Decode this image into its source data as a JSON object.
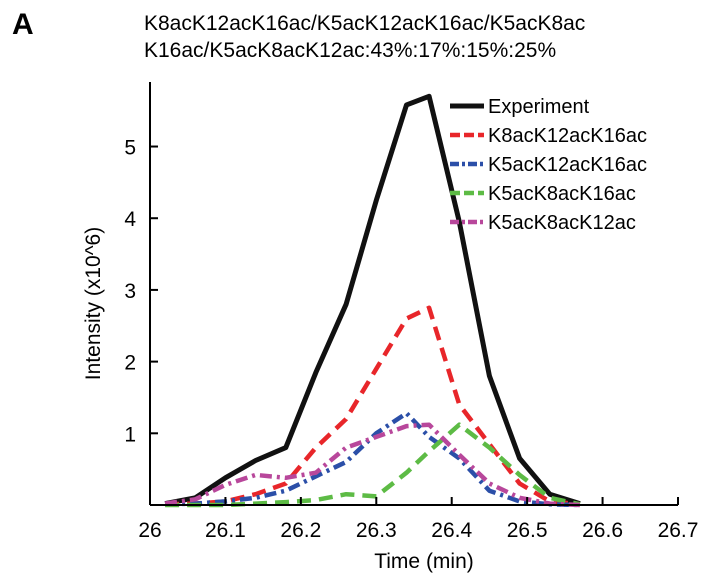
{
  "panel_label": "A",
  "chart_data": {
    "type": "line",
    "title_lines": [
      "K8acK12acK16ac/K5acK12acK16ac/K5acK8ac",
      "K16ac/K5acK8acK12ac:43%:17%:15%:25%"
    ],
    "xlabel": "Time (min)",
    "ylabel": "Intensity (x10^6)",
    "xlim": [
      26,
      26.7
    ],
    "ylim": [
      0,
      5.9
    ],
    "xticks": [
      26,
      26.1,
      26.2,
      26.3,
      26.4,
      26.5,
      26.6,
      26.7
    ],
    "xtick_labels": [
      "26",
      "26.1",
      "26.2",
      "26.3",
      "26.4",
      "26.5",
      "26.6",
      "26.7"
    ],
    "yticks": [
      1,
      2,
      3,
      4,
      5
    ],
    "ytick_labels": [
      "1",
      "2",
      "3",
      "4",
      "5"
    ],
    "grid": false,
    "legend_position": "top-right",
    "series": [
      {
        "name": "Experiment",
        "color": "#111111",
        "dash": "solid",
        "x": [
          26.02,
          26.06,
          26.1,
          26.14,
          26.18,
          26.22,
          26.26,
          26.3,
          26.34,
          26.37,
          26.41,
          26.45,
          26.49,
          26.53,
          26.57
        ],
        "y": [
          0.02,
          0.1,
          0.38,
          0.62,
          0.8,
          1.85,
          2.8,
          4.25,
          5.58,
          5.7,
          3.95,
          1.8,
          0.65,
          0.15,
          0.02
        ]
      },
      {
        "name": "K8acK12acK16ac",
        "color": "#e8262a",
        "dash": "dash",
        "x": [
          26.02,
          26.06,
          26.1,
          26.14,
          26.18,
          26.22,
          26.26,
          26.3,
          26.34,
          26.37,
          26.41,
          26.45,
          26.49,
          26.53,
          26.57
        ],
        "y": [
          0.01,
          0.02,
          0.05,
          0.15,
          0.3,
          0.8,
          1.2,
          1.9,
          2.6,
          2.75,
          1.4,
          0.85,
          0.3,
          0.05,
          0.01
        ]
      },
      {
        "name": "K5acK12acK16ac",
        "color": "#2b4fa8",
        "dash": "dashdot",
        "x": [
          26.02,
          26.06,
          26.1,
          26.14,
          26.18,
          26.22,
          26.26,
          26.3,
          26.34,
          26.37,
          26.41,
          26.45,
          26.49,
          26.53,
          26.57
        ],
        "y": [
          0.01,
          0.02,
          0.05,
          0.1,
          0.2,
          0.4,
          0.6,
          1.0,
          1.28,
          0.95,
          0.65,
          0.2,
          0.05,
          0.01,
          0.0
        ]
      },
      {
        "name": "K5acK8acK16ac",
        "color": "#5dbb45",
        "dash": "dash",
        "x": [
          26.02,
          26.06,
          26.1,
          26.14,
          26.18,
          26.22,
          26.26,
          26.3,
          26.34,
          26.37,
          26.41,
          26.45,
          26.49,
          26.53,
          26.57
        ],
        "y": [
          0.0,
          0.0,
          0.0,
          0.02,
          0.04,
          0.07,
          0.15,
          0.12,
          0.45,
          0.75,
          1.12,
          0.8,
          0.42,
          0.1,
          0.01
        ]
      },
      {
        "name": "K5acK8acK12ac",
        "color": "#b8479b",
        "dash": "dashdot",
        "x": [
          26.02,
          26.06,
          26.1,
          26.14,
          26.18,
          26.22,
          26.26,
          26.3,
          26.34,
          26.37,
          26.41,
          26.45,
          26.49,
          26.53,
          26.57
        ],
        "y": [
          0.02,
          0.08,
          0.28,
          0.42,
          0.38,
          0.45,
          0.8,
          0.95,
          1.1,
          1.12,
          0.7,
          0.3,
          0.1,
          0.02,
          0.0
        ]
      }
    ]
  }
}
